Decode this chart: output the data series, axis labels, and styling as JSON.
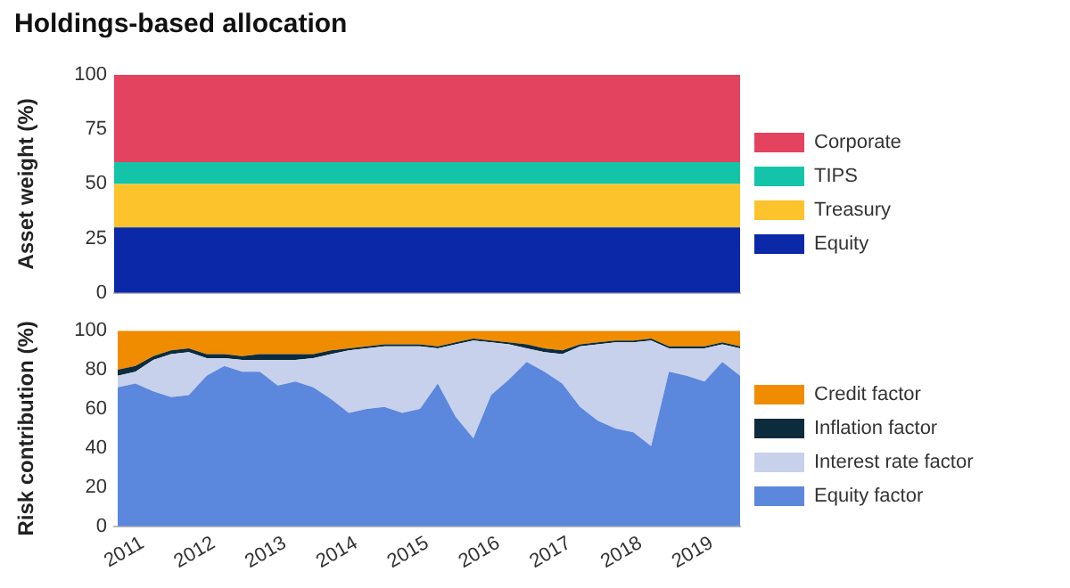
{
  "chart_data": [
    {
      "type": "area",
      "title": "Holdings-based allocation",
      "ylabel": "Asset weight (%)",
      "stacked": true,
      "x": [
        2010.6,
        2019.4
      ],
      "xlim": [
        2010.6,
        2019.4
      ],
      "ylim": [
        0,
        100
      ],
      "yticks": [
        0,
        25,
        50,
        75,
        100
      ],
      "tick_labels": "y",
      "grid": false,
      "legend": "right",
      "series": [
        {
          "name": "Equity",
          "color": "#0a28a8",
          "values": [
            30,
            30
          ]
        },
        {
          "name": "Treasury",
          "color": "#fcc32c",
          "values": [
            20,
            20
          ]
        },
        {
          "name": "TIPS",
          "color": "#13c4a8",
          "values": [
            10,
            10
          ]
        },
        {
          "name": "Corporate",
          "color": "#e3435e",
          "values": [
            40,
            40
          ]
        }
      ]
    },
    {
      "type": "area",
      "ylabel": "Risk contribution (%)",
      "stacked": true,
      "x": [
        2010.65,
        2010.9,
        2011.15,
        2011.4,
        2011.65,
        2011.9,
        2012.15,
        2012.4,
        2012.65,
        2012.9,
        2013.15,
        2013.4,
        2013.65,
        2013.9,
        2014.15,
        2014.4,
        2014.65,
        2014.9,
        2015.15,
        2015.4,
        2015.65,
        2015.9,
        2016.15,
        2016.4,
        2016.65,
        2016.9,
        2017.15,
        2017.4,
        2017.65,
        2017.9,
        2018.15,
        2018.4,
        2018.65,
        2018.9,
        2019.15,
        2019.4
      ],
      "xlim": [
        2010.6,
        2019.4
      ],
      "xticks": [
        2011,
        2012,
        2013,
        2014,
        2015,
        2016,
        2017,
        2018,
        2019
      ],
      "ylim": [
        0,
        100
      ],
      "yticks": [
        0,
        20,
        40,
        60,
        80,
        100
      ],
      "grid": false,
      "legend": "right",
      "series": [
        {
          "name": "Equity factor",
          "color": "#5b87dc",
          "values": [
            71,
            73,
            69,
            66,
            67,
            77,
            82,
            79,
            79,
            72,
            74,
            71,
            65,
            58,
            60,
            61,
            58,
            60,
            73,
            56,
            45,
            67,
            75,
            84,
            79,
            73,
            61,
            54,
            50,
            48,
            41,
            79,
            77,
            74,
            84,
            77
          ]
        },
        {
          "name": "Interest rate factor",
          "color": "#c8d1ec",
          "values": [
            6,
            6,
            16,
            22,
            22,
            9,
            4,
            6,
            6,
            13,
            11,
            15,
            23,
            32,
            31,
            31,
            34,
            32,
            18,
            37,
            50,
            27,
            18,
            7,
            10,
            15,
            31,
            39,
            44,
            46,
            54,
            12,
            14,
            17,
            9,
            14
          ]
        },
        {
          "name": "Inflation factor",
          "color": "#0c2b3c",
          "values": [
            3,
            3,
            2,
            2,
            2,
            2,
            2,
            2,
            3,
            3,
            3,
            2,
            2,
            1,
            1,
            1,
            1,
            1,
            1,
            1,
            1,
            1,
            1,
            2,
            2,
            2,
            1,
            1,
            1,
            1,
            1,
            1,
            1,
            1,
            1,
            1
          ]
        },
        {
          "name": "Credit factor",
          "color": "#f08c00",
          "values": [
            20,
            18,
            13,
            10,
            9,
            12,
            12,
            13,
            12,
            12,
            12,
            12,
            10,
            9,
            8,
            7,
            7,
            7,
            8,
            6,
            4,
            5,
            6,
            7,
            9,
            10,
            7,
            6,
            5,
            5,
            4,
            8,
            8,
            8,
            6,
            8
          ]
        }
      ]
    }
  ]
}
